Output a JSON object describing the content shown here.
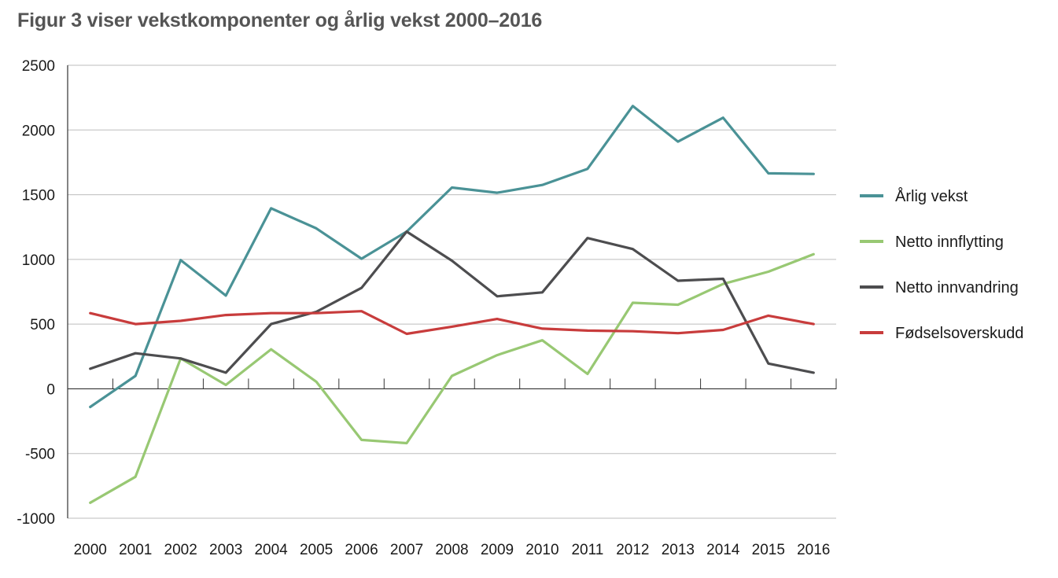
{
  "title": "Figur 3 viser vekstkomponenter og årlig vekst 2000–2016",
  "chart_data": {
    "type": "line",
    "title": "Figur 3 viser vekstkomponenter og årlig vekst 2000–2016",
    "xlabel": "",
    "ylabel": "",
    "ylim": [
      -1000,
      2500
    ],
    "yticks": [
      "2500",
      "2000",
      "1500",
      "1000",
      "500",
      "0",
      "-500",
      "-1000"
    ],
    "ytick_values": [
      2500,
      2000,
      1500,
      1000,
      500,
      0,
      -500,
      -1000
    ],
    "categories": [
      "2000",
      "2001",
      "2002",
      "2003",
      "2004",
      "2005",
      "2006",
      "2007",
      "2008",
      "2009",
      "2010",
      "2011",
      "2012",
      "2013",
      "2014",
      "2015",
      "2016"
    ],
    "grid": true,
    "legend_position": "right",
    "series": [
      {
        "name": "Årlig vekst",
        "color": "#4a9296",
        "values": [
          -140,
          100,
          995,
          720,
          1395,
          1240,
          1005,
          1215,
          1555,
          1515,
          1575,
          1700,
          2185,
          1910,
          2095,
          1665,
          1660
        ]
      },
      {
        "name": "Netto innflytting",
        "color": "#98c873",
        "values": [
          -880,
          -680,
          235,
          30,
          305,
          55,
          -395,
          -420,
          100,
          260,
          375,
          115,
          665,
          650,
          810,
          905,
          1040
        ]
      },
      {
        "name": "Netto innvandring",
        "color": "#4d4d4f",
        "values": [
          155,
          275,
          235,
          125,
          500,
          595,
          780,
          1215,
          990,
          715,
          745,
          1165,
          1080,
          835,
          850,
          195,
          125
        ]
      },
      {
        "name": "Fødselsoverskudd",
        "color": "#c83c3c",
        "values": [
          585,
          500,
          525,
          570,
          585,
          585,
          600,
          425,
          480,
          540,
          465,
          450,
          445,
          430,
          455,
          565,
          500
        ]
      }
    ]
  }
}
